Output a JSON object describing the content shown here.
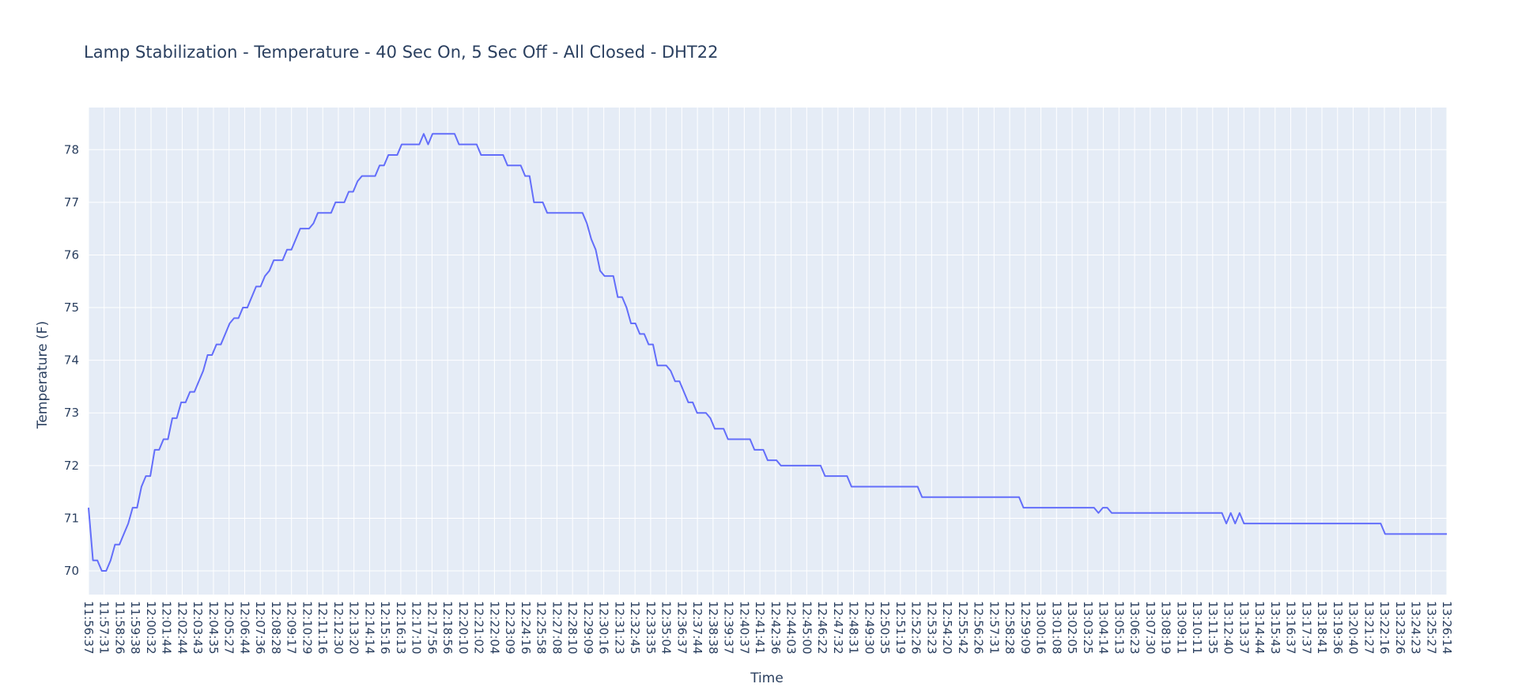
{
  "chart_data": {
    "type": "line",
    "title": "Lamp Stabilization - Temperature - 40 Sec On, 5 Sec Off - All Closed - DHT22",
    "xlabel": "Time",
    "ylabel": "Temperature (F)",
    "ylim": [
      69.55,
      78.8
    ],
    "yticks": [
      70,
      71,
      72,
      73,
      74,
      75,
      76,
      77,
      78
    ],
    "grid": true,
    "x_tick_labels": [
      "11:56:37",
      "11:57:31",
      "11:58:26",
      "11:59:38",
      "12:00:32",
      "12:01:44",
      "12:02:44",
      "12:03:43",
      "12:04:35",
      "12:05:27",
      "12:06:44",
      "12:07:36",
      "12:08:28",
      "12:09:17",
      "12:10:29",
      "12:11:16",
      "12:12:30",
      "12:13:20",
      "12:14:14",
      "12:15:16",
      "12:16:13",
      "12:17:10",
      "12:17:56",
      "12:18:56",
      "12:20:10",
      "12:21:02",
      "12:22:04",
      "12:23:09",
      "12:24:16",
      "12:25:58",
      "12:27:08",
      "12:28:10",
      "12:29:09",
      "12:30:16",
      "12:31:23",
      "12:32:45",
      "12:33:35",
      "12:35:04",
      "12:36:37",
      "12:37:44",
      "12:38:38",
      "12:39:37",
      "12:40:37",
      "12:41:41",
      "12:42:36",
      "12:44:03",
      "12:45:00",
      "12:46:22",
      "12:47:32",
      "12:48:31",
      "12:49:30",
      "12:50:35",
      "12:51:19",
      "12:52:26",
      "12:53:23",
      "12:54:20",
      "12:55:42",
      "12:56:26",
      "12:57:31",
      "12:58:28",
      "12:59:09",
      "13:00:16",
      "13:01:08",
      "13:02:05",
      "13:03:25",
      "13:04:14",
      "13:05:13",
      "13:06:23",
      "13:07:30",
      "13:08:19",
      "13:09:11",
      "13:10:11",
      "13:11:35",
      "13:12:40",
      "13:13:37",
      "13:14:44",
      "13:15:43",
      "13:16:37",
      "13:17:37",
      "13:18:41",
      "13:19:36",
      "13:20:40",
      "13:21:27",
      "13:22:16",
      "13:23:26",
      "13:24:23",
      "13:25:27",
      "13:26:14"
    ],
    "series": [
      {
        "color": "#636efa",
        "values": [
          71.2,
          70.2,
          70.2,
          70.0,
          70.0,
          70.2,
          70.5,
          70.5,
          70.7,
          70.9,
          71.2,
          71.2,
          71.6,
          71.8,
          71.8,
          72.3,
          72.3,
          72.5,
          72.5,
          72.9,
          72.9,
          73.2,
          73.2,
          73.4,
          73.4,
          73.6,
          73.8,
          74.1,
          74.1,
          74.3,
          74.3,
          74.5,
          74.7,
          74.8,
          74.8,
          75.0,
          75.0,
          75.2,
          75.4,
          75.4,
          75.6,
          75.7,
          75.9,
          75.9,
          75.9,
          76.1,
          76.1,
          76.3,
          76.5,
          76.5,
          76.5,
          76.6,
          76.8,
          76.8,
          76.8,
          76.8,
          77.0,
          77.0,
          77.0,
          77.2,
          77.2,
          77.4,
          77.5,
          77.5,
          77.5,
          77.5,
          77.7,
          77.7,
          77.9,
          77.9,
          77.9,
          78.1,
          78.1,
          78.1,
          78.1,
          78.1,
          78.3,
          78.1,
          78.3,
          78.3,
          78.3,
          78.3,
          78.3,
          78.3,
          78.1,
          78.1,
          78.1,
          78.1,
          78.1,
          77.9,
          77.9,
          77.9,
          77.9,
          77.9,
          77.9,
          77.7,
          77.7,
          77.7,
          77.7,
          77.5,
          77.5,
          77.0,
          77.0,
          77.0,
          76.8,
          76.8,
          76.8,
          76.8,
          76.8,
          76.8,
          76.8,
          76.8,
          76.8,
          76.6,
          76.3,
          76.1,
          75.7,
          75.6,
          75.6,
          75.6,
          75.2,
          75.2,
          75.0,
          74.7,
          74.7,
          74.5,
          74.5,
          74.3,
          74.3,
          73.9,
          73.9,
          73.9,
          73.8,
          73.6,
          73.6,
          73.4,
          73.2,
          73.2,
          73.0,
          73.0,
          73.0,
          72.9,
          72.7,
          72.7,
          72.7,
          72.5,
          72.5,
          72.5,
          72.5,
          72.5,
          72.5,
          72.3,
          72.3,
          72.3,
          72.1,
          72.1,
          72.1,
          72.0,
          72.0,
          72.0,
          72.0,
          72.0,
          72.0,
          72.0,
          72.0,
          72.0,
          72.0,
          71.8,
          71.8,
          71.8,
          71.8,
          71.8,
          71.8,
          71.6,
          71.6,
          71.6,
          71.6,
          71.6,
          71.6,
          71.6,
          71.6,
          71.6,
          71.6,
          71.6,
          71.6,
          71.6,
          71.6,
          71.6,
          71.6,
          71.4,
          71.4,
          71.4,
          71.4,
          71.4,
          71.4,
          71.4,
          71.4,
          71.4,
          71.4,
          71.4,
          71.4,
          71.4,
          71.4,
          71.4,
          71.4,
          71.4,
          71.4,
          71.4,
          71.4,
          71.4,
          71.4,
          71.4,
          71.2,
          71.2,
          71.2,
          71.2,
          71.2,
          71.2,
          71.2,
          71.2,
          71.2,
          71.2,
          71.2,
          71.2,
          71.2,
          71.2,
          71.2,
          71.2,
          71.2,
          71.1,
          71.2,
          71.2,
          71.1,
          71.1,
          71.1,
          71.1,
          71.1,
          71.1,
          71.1,
          71.1,
          71.1,
          71.1,
          71.1,
          71.1,
          71.1,
          71.1,
          71.1,
          71.1,
          71.1,
          71.1,
          71.1,
          71.1,
          71.1,
          71.1,
          71.1,
          71.1,
          71.1,
          71.1,
          70.9,
          71.1,
          70.9,
          71.1,
          70.9,
          70.9,
          70.9,
          70.9,
          70.9,
          70.9,
          70.9,
          70.9,
          70.9,
          70.9,
          70.9,
          70.9,
          70.9,
          70.9,
          70.9,
          70.9,
          70.9,
          70.9,
          70.9,
          70.9,
          70.9,
          70.9,
          70.9,
          70.9,
          70.9,
          70.9,
          70.9,
          70.9,
          70.9,
          70.9,
          70.9,
          70.9,
          70.7,
          70.7,
          70.7,
          70.7,
          70.7,
          70.7,
          70.7,
          70.7,
          70.7,
          70.7,
          70.7,
          70.7,
          70.7,
          70.7,
          70.7
        ]
      }
    ]
  }
}
